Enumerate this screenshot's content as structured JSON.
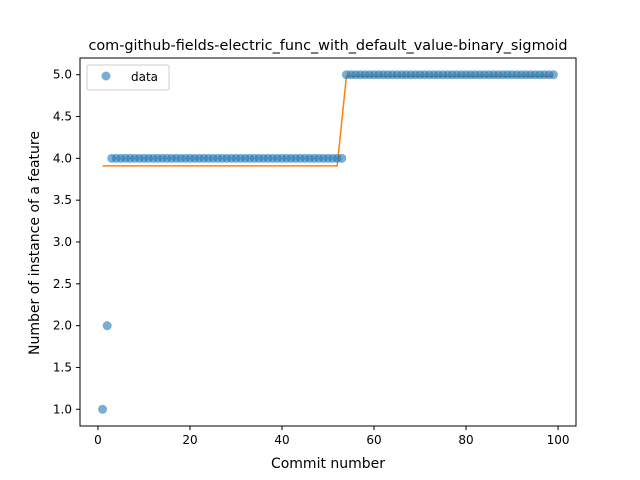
{
  "chart_data": {
    "type": "scatter",
    "title": "com-github-fields-electric_func_with_default_value-binary_sigmoid",
    "xlabel": "Commit number",
    "ylabel": "Number of instance of a feature",
    "xlim": [
      -3.9,
      103.9
    ],
    "ylim": [
      0.8,
      5.2
    ],
    "xticks": [
      0,
      20,
      40,
      60,
      80,
      100
    ],
    "yticks": [
      1.0,
      1.5,
      2.0,
      2.5,
      3.0,
      3.5,
      4.0,
      4.5,
      5.0
    ],
    "xtick_labels": [
      "0",
      "20",
      "40",
      "60",
      "80",
      "100"
    ],
    "ytick_labels": [
      "1.0",
      "1.5",
      "2.0",
      "2.5",
      "3.0",
      "3.5",
      "4.0",
      "4.5",
      "5.0"
    ],
    "grid": false,
    "legend_position": "upper-left",
    "colors": {
      "data": "#1f77b4",
      "fit": "#ff7f0e"
    },
    "series": [
      {
        "name": "data",
        "kind": "scatter",
        "x": [
          1,
          2,
          3,
          4,
          5,
          6,
          7,
          8,
          9,
          10,
          11,
          12,
          13,
          14,
          15,
          16,
          17,
          18,
          19,
          20,
          21,
          22,
          23,
          24,
          25,
          26,
          27,
          28,
          29,
          30,
          31,
          32,
          33,
          34,
          35,
          36,
          37,
          38,
          39,
          40,
          41,
          42,
          43,
          44,
          45,
          46,
          47,
          48,
          49,
          50,
          51,
          52,
          53,
          54,
          55,
          56,
          57,
          58,
          59,
          60,
          61,
          62,
          63,
          64,
          65,
          66,
          67,
          68,
          69,
          70,
          71,
          72,
          73,
          74,
          75,
          76,
          77,
          78,
          79,
          80,
          81,
          82,
          83,
          84,
          85,
          86,
          87,
          88,
          89,
          90,
          91,
          92,
          93,
          94,
          95,
          96,
          97,
          98,
          99
        ],
        "y": [
          1,
          2,
          4,
          4,
          4,
          4,
          4,
          4,
          4,
          4,
          4,
          4,
          4,
          4,
          4,
          4,
          4,
          4,
          4,
          4,
          4,
          4,
          4,
          4,
          4,
          4,
          4,
          4,
          4,
          4,
          4,
          4,
          4,
          4,
          4,
          4,
          4,
          4,
          4,
          4,
          4,
          4,
          4,
          4,
          4,
          4,
          4,
          4,
          4,
          4,
          4,
          4,
          4,
          5,
          5,
          5,
          5,
          5,
          5,
          5,
          5,
          5,
          5,
          5,
          5,
          5,
          5,
          5,
          5,
          5,
          5,
          5,
          5,
          5,
          5,
          5,
          5,
          5,
          5,
          5,
          5,
          5,
          5,
          5,
          5,
          5,
          5,
          5,
          5,
          5,
          5,
          5,
          5,
          5,
          5,
          5,
          5,
          5,
          5
        ]
      },
      {
        "kind": "line",
        "x": [
          1,
          52,
          54,
          99
        ],
        "y": [
          3.91,
          3.91,
          4.98,
          4.98
        ]
      }
    ]
  }
}
